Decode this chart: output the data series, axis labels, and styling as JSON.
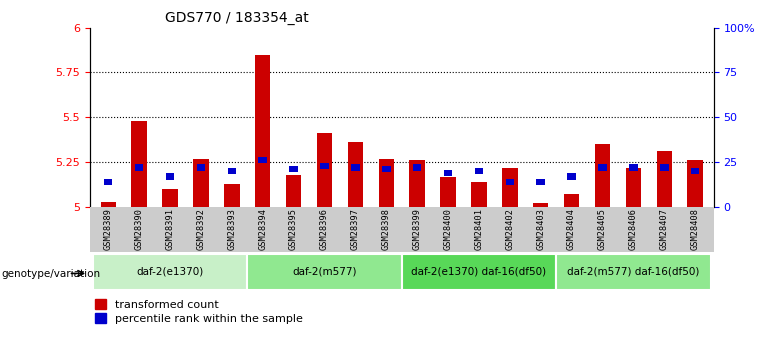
{
  "title": "GDS770 / 183354_at",
  "samples": [
    "GSM28389",
    "GSM28390",
    "GSM28391",
    "GSM28392",
    "GSM28393",
    "GSM28394",
    "GSM28395",
    "GSM28396",
    "GSM28397",
    "GSM28398",
    "GSM28399",
    "GSM28400",
    "GSM28401",
    "GSM28402",
    "GSM28403",
    "GSM28404",
    "GSM28405",
    "GSM28406",
    "GSM28407",
    "GSM28408"
  ],
  "red_values": [
    5.03,
    5.48,
    5.1,
    5.27,
    5.13,
    5.85,
    5.18,
    5.41,
    5.36,
    5.27,
    5.26,
    5.17,
    5.14,
    5.22,
    5.02,
    5.07,
    5.35,
    5.22,
    5.31,
    5.26
  ],
  "blue_values": [
    14,
    22,
    17,
    22,
    20,
    26,
    21,
    23,
    22,
    21,
    22,
    19,
    20,
    14,
    14,
    17,
    22,
    22,
    22,
    20
  ],
  "ymin": 5.0,
  "ymax": 6.0,
  "yticks_left": [
    5.0,
    5.25,
    5.5,
    5.75,
    6.0
  ],
  "yticks_left_labels": [
    "5",
    "5.25",
    "5.5",
    "5.75",
    "6"
  ],
  "yticks_right": [
    0,
    25,
    50,
    75,
    100
  ],
  "yticks_right_labels": [
    "0",
    "25",
    "50",
    "75",
    "100%"
  ],
  "dotted_lines": [
    5.25,
    5.5,
    5.75
  ],
  "groups": [
    {
      "label": "daf-2(e1370)",
      "start": 0,
      "end": 5,
      "color": "#c8f0c8"
    },
    {
      "label": "daf-2(m577)",
      "start": 5,
      "end": 10,
      "color": "#90e890"
    },
    {
      "label": "daf-2(e1370) daf-16(df50)",
      "start": 10,
      "end": 15,
      "color": "#58d858"
    },
    {
      "label": "daf-2(m577) daf-16(df50)",
      "start": 15,
      "end": 20,
      "color": "#90e890"
    }
  ],
  "legend_red": "transformed count",
  "legend_blue": "percentile rank within the sample",
  "genotype_label": "genotype/variation",
  "bar_color": "#cc0000",
  "blue_color": "#0000cc",
  "base_value": 5.0
}
